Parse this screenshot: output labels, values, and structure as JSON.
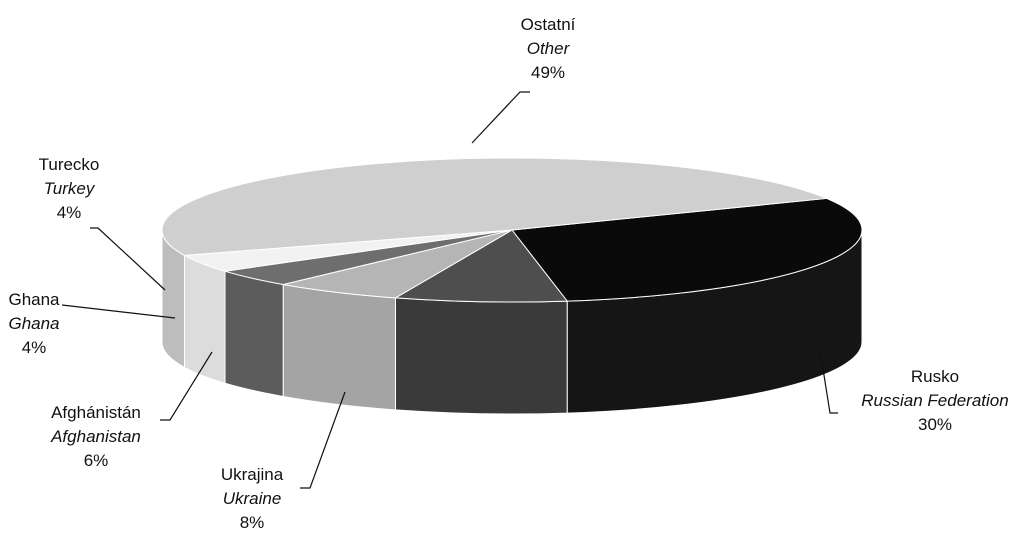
{
  "chart_data": {
    "type": "pie",
    "style": "3d-exploded-none",
    "title": "",
    "slices": [
      {
        "label_cs": "Rusko",
        "label_en": "Russian Federation",
        "percent_label": "30%",
        "value": 30,
        "color": "#0a0a0a",
        "side_color": "#151515"
      },
      {
        "label_cs": "Ukrajina",
        "label_en": "Ukraine",
        "percent_label": "8%",
        "value": 8,
        "color": "#4e4e4e",
        "side_color": "#3a3a3a"
      },
      {
        "label_cs": "Afghánistán",
        "label_en": "Afghanistan",
        "percent_label": "6%",
        "value": 6,
        "color": "#b5b5b5",
        "side_color": "#a4a4a4"
      },
      {
        "label_cs": "Ghana",
        "label_en": "Ghana",
        "percent_label": "4%",
        "value": 4,
        "color": "#6e6e6e",
        "side_color": "#5c5c5c"
      },
      {
        "label_cs": "Turecko",
        "label_en": "Turkey",
        "percent_label": "4%",
        "value": 4,
        "color": "#f2f2f2",
        "side_color": "#dcdcdc"
      },
      {
        "label_cs": "Ostatní",
        "label_en": "Other",
        "percent_label": "49%",
        "value": 49,
        "color": "#cfcfcf",
        "side_color": "#bdbdbd"
      }
    ]
  }
}
